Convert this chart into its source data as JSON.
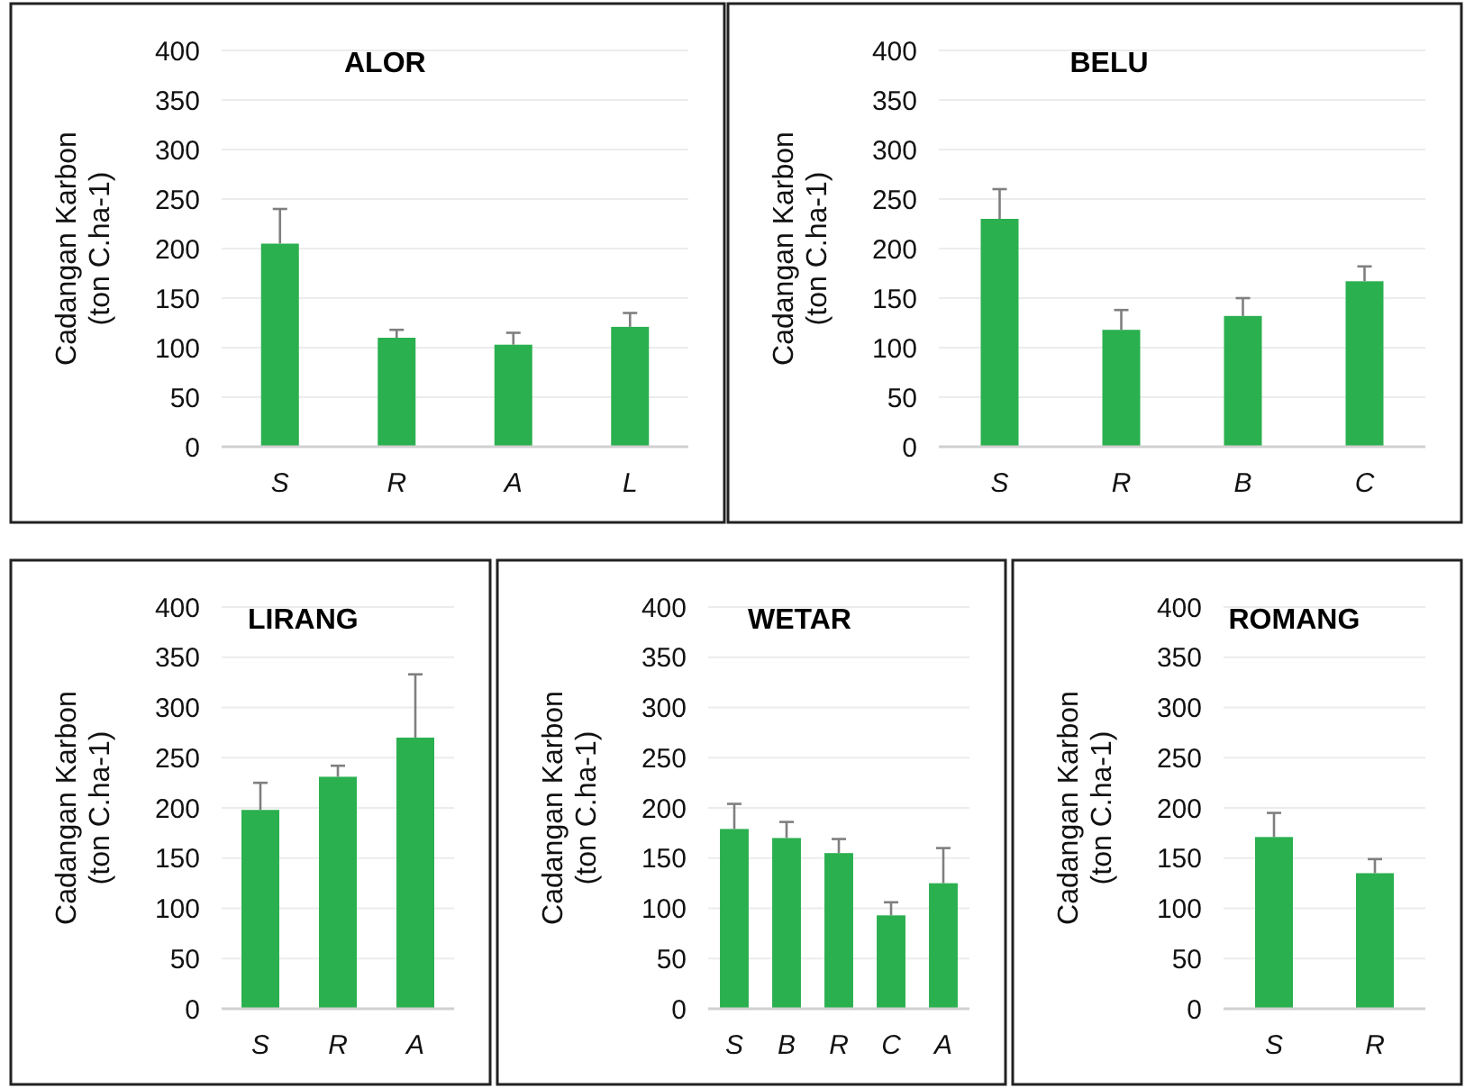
{
  "chart_data": [
    {
      "type": "bar",
      "title": "ALOR",
      "ylabel": "Cadangan Karbon\n(ton C.ha-1)",
      "categories": [
        "S",
        "R",
        "A",
        "L"
      ],
      "values": [
        205,
        110,
        103,
        121
      ],
      "errors": [
        [
          205,
          240
        ],
        [
          110,
          118
        ],
        [
          103,
          115
        ],
        [
          121,
          135
        ]
      ],
      "color": "#2bb04f",
      "ylim": [
        0,
        400
      ],
      "yticks": [
        0,
        50,
        100,
        150,
        200,
        250,
        300,
        350,
        400
      ],
      "grid": "y"
    },
    {
      "type": "bar",
      "title": "BELU",
      "ylabel": "Cadangan Karbon\n(ton C.ha-1)",
      "categories": [
        "S",
        "R",
        "B",
        "C"
      ],
      "values": [
        230,
        118,
        132,
        167
      ],
      "errors": [
        [
          230,
          260
        ],
        [
          118,
          138
        ],
        [
          132,
          150
        ],
        [
          167,
          182
        ]
      ],
      "color": "#2bb04f",
      "ylim": [
        0,
        400
      ],
      "yticks": [
        0,
        50,
        100,
        150,
        200,
        250,
        300,
        350,
        400
      ],
      "grid": "y"
    },
    {
      "type": "bar",
      "title": "LIRANG",
      "ylabel": "Cadangan Karbon\n(ton C.ha-1)",
      "categories": [
        "S",
        "R",
        "A"
      ],
      "values": [
        198,
        231,
        270
      ],
      "errors": [
        [
          198,
          225
        ],
        [
          231,
          242
        ],
        [
          270,
          333
        ]
      ],
      "color": "#2bb04f",
      "ylim": [
        0,
        400
      ],
      "yticks": [
        0,
        50,
        100,
        150,
        200,
        250,
        300,
        350,
        400
      ],
      "grid": "y"
    },
    {
      "type": "bar",
      "title": "WETAR",
      "ylabel": "Cadangan Karbon\n(ton C.ha-1)",
      "categories": [
        "S",
        "B",
        "R",
        "C",
        "A"
      ],
      "values": [
        179,
        170,
        155,
        93,
        125
      ],
      "errors": [
        [
          179,
          204
        ],
        [
          170,
          186
        ],
        [
          155,
          169
        ],
        [
          93,
          106
        ],
        [
          125,
          160
        ]
      ],
      "color": "#2bb04f",
      "ylim": [
        0,
        400
      ],
      "yticks": [
        0,
        50,
        100,
        150,
        200,
        250,
        300,
        350,
        400
      ],
      "grid": "y"
    },
    {
      "type": "bar",
      "title": "ROMANG",
      "ylabel": "Cadangan Karbon\n(ton C.ha-1)",
      "categories": [
        "S",
        "R"
      ],
      "values": [
        171,
        135
      ],
      "errors": [
        [
          171,
          195
        ],
        [
          135,
          149
        ]
      ],
      "color": "#2bb04f",
      "ylim": [
        0,
        400
      ],
      "yticks": [
        0,
        50,
        100,
        150,
        200,
        250,
        300,
        350,
        400
      ],
      "grid": "y"
    }
  ]
}
